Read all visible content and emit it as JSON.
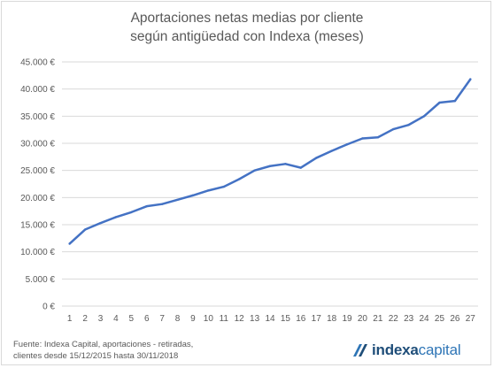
{
  "chart_data": {
    "type": "line",
    "title": "Aportaciones netas medias por cliente según antigüedad con Indexa (meses)",
    "title_lines": [
      "Aportaciones netas medias por cliente",
      "según antigüedad con Indexa (meses)"
    ],
    "x": [
      1,
      2,
      3,
      4,
      5,
      6,
      7,
      8,
      9,
      10,
      11,
      12,
      13,
      14,
      15,
      16,
      17,
      18,
      19,
      20,
      21,
      22,
      23,
      24,
      25,
      26,
      27
    ],
    "series": [
      {
        "values": [
          11500,
          14100,
          15300,
          16400,
          17300,
          18400,
          18800,
          19600,
          20400,
          21300,
          22000,
          23400,
          25000,
          25800,
          26200,
          25500,
          27300,
          28600,
          29800,
          30900,
          31100,
          32600,
          33400,
          35000,
          37500,
          37800,
          41800
        ]
      }
    ],
    "ylim": [
      0,
      45000
    ],
    "y_ticks": [
      0,
      5000,
      10000,
      15000,
      20000,
      25000,
      30000,
      35000,
      40000,
      45000
    ],
    "y_tick_labels": [
      "0 €",
      "5.000 €",
      "10.000 €",
      "15.000 €",
      "20.000 €",
      "25.000 €",
      "30.000 €",
      "35.000 €",
      "40.000 €",
      "45.000 €"
    ],
    "grid": true,
    "line_color": "#4472c4",
    "grid_color": "#d9d9d9"
  },
  "source": {
    "line1": "Fuente: Indexa Capital, aportaciones - retiradas,",
    "line2": "clientes desde 15/12/2015 hasta 30/11/2018"
  },
  "logo": {
    "part1": "indexa",
    "part2": "capital",
    "icon": "indexa-capital-logo-icon"
  }
}
